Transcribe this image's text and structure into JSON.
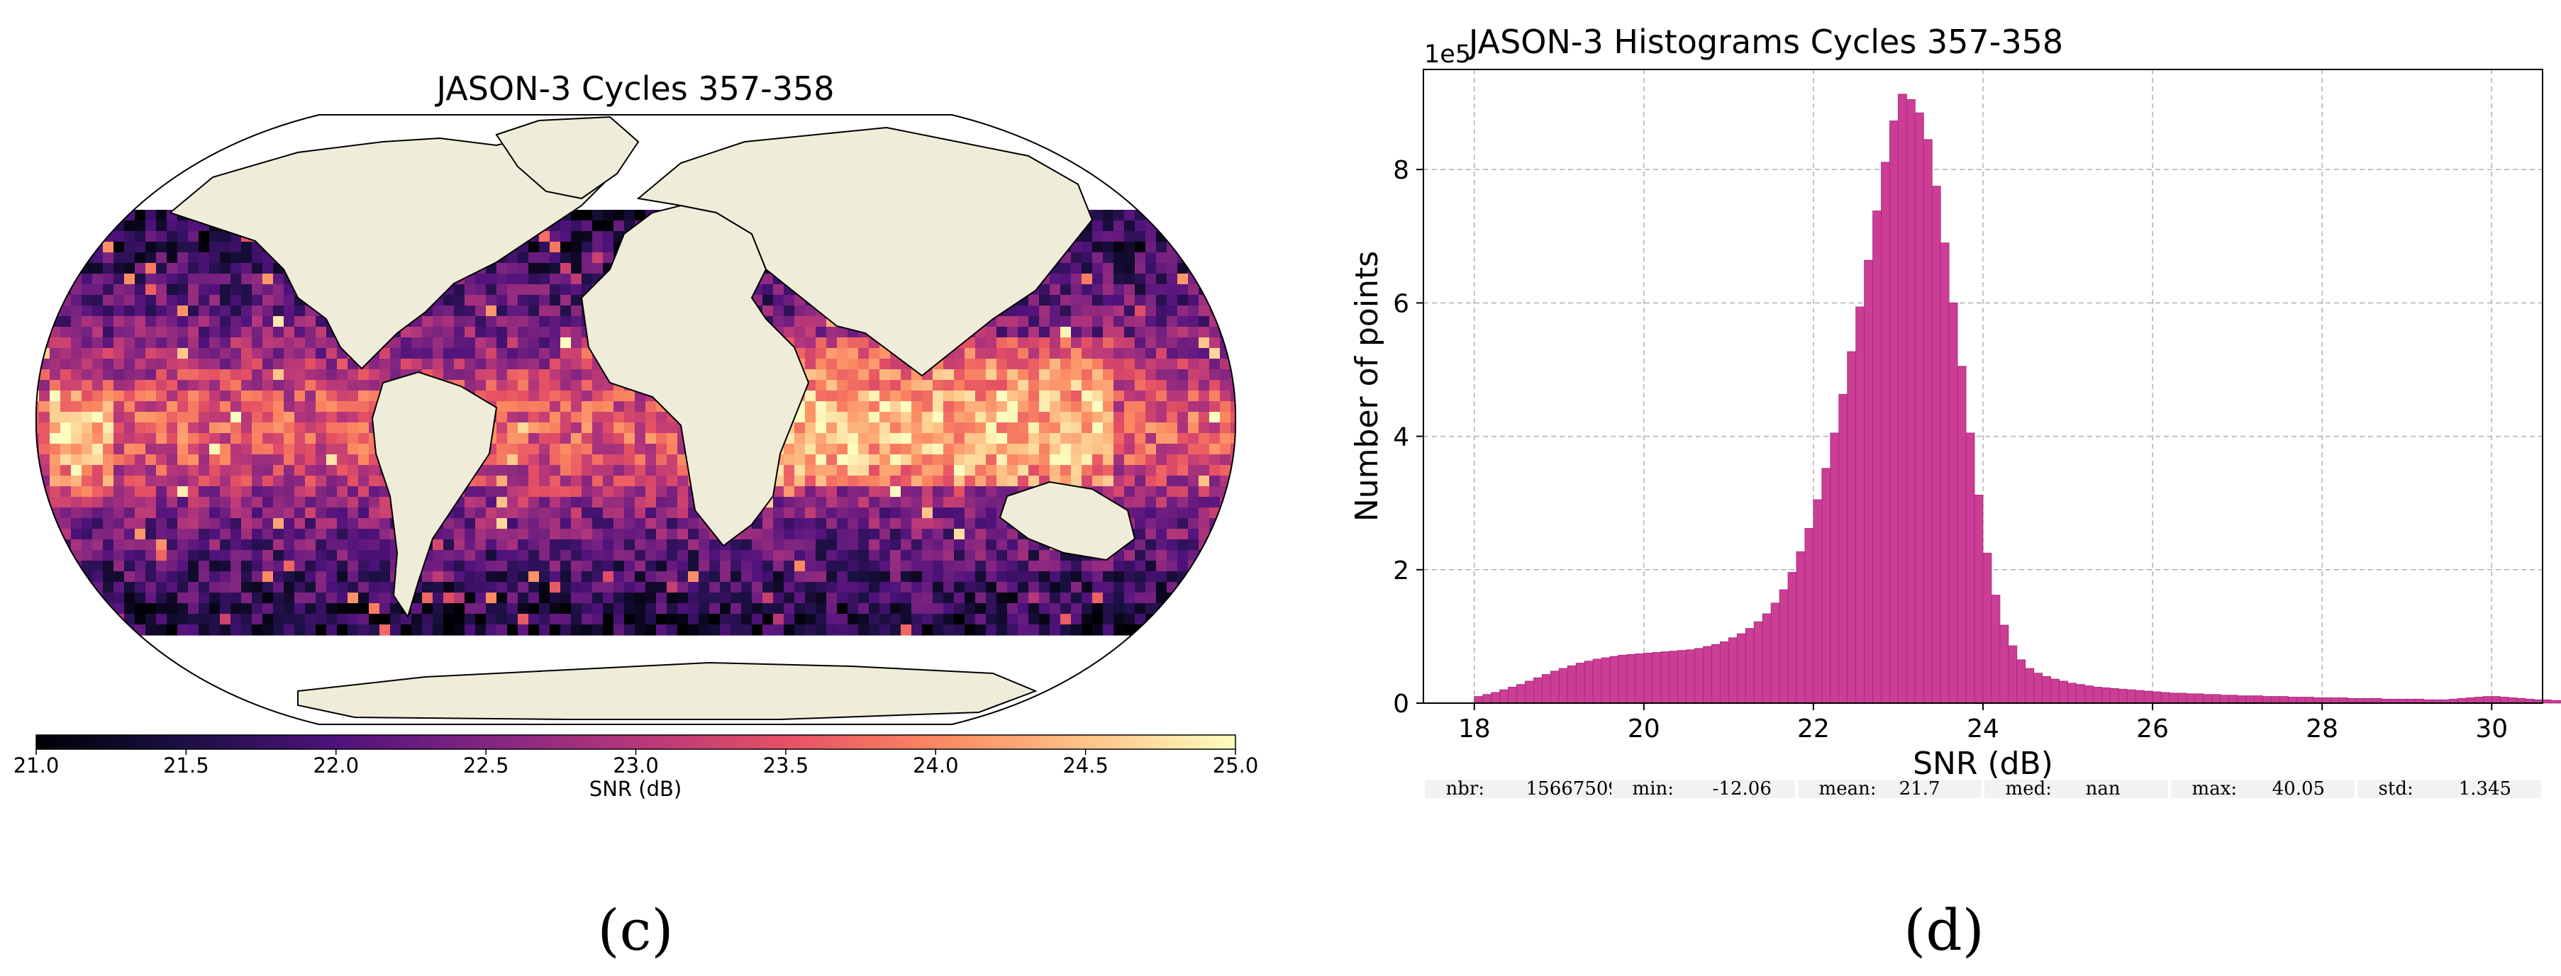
{
  "map_panel": {
    "title": "JASON-3 Cycles 357-358",
    "colorbar_label": "SNR (dB)",
    "colorbar_ticks": [
      "21.0",
      "21.5",
      "22.0",
      "22.5",
      "23.0",
      "23.5",
      "24.0",
      "24.5",
      "25.0"
    ],
    "colormap": [
      "#000004",
      "#1c1044",
      "#4f127b",
      "#812581",
      "#b5367a",
      "#e55064",
      "#fb8761",
      "#fec287",
      "#fcfdbf"
    ],
    "land_color": "#efedda",
    "caption": "(c)"
  },
  "hist_panel": {
    "caption": "(d)",
    "stats": [
      {
        "label": "nbr:",
        "value": "15667509"
      },
      {
        "label": "min:",
        "value": "-12.06"
      },
      {
        "label": "mean:",
        "value": "21.7"
      },
      {
        "label": "med:",
        "value": "nan"
      },
      {
        "label": "max:",
        "value": "40.05"
      },
      {
        "label": "std:",
        "value": "1.345"
      }
    ]
  },
  "chart_data": {
    "type": "bar",
    "title": "JASON-3 Histograms Cycles 357-358",
    "xlabel": "SNR (dB)",
    "ylabel": "Number of points",
    "y_offset_label": "1e5",
    "xlim": [
      17.4,
      30.6
    ],
    "ylim": [
      0,
      9.5
    ],
    "xticks": [
      18,
      20,
      22,
      24,
      26,
      28,
      30
    ],
    "yticks": [
      0,
      2,
      4,
      6,
      8
    ],
    "grid": true,
    "bar_color": "#cc3d96",
    "bar_edge_color": "#9e2a73",
    "bin_start": 18.0,
    "bin_width": 0.1,
    "values": [
      0.1,
      0.13,
      0.16,
      0.2,
      0.24,
      0.28,
      0.33,
      0.38,
      0.43,
      0.48,
      0.52,
      0.56,
      0.6,
      0.63,
      0.66,
      0.68,
      0.7,
      0.72,
      0.73,
      0.74,
      0.75,
      0.76,
      0.77,
      0.78,
      0.79,
      0.8,
      0.82,
      0.85,
      0.88,
      0.92,
      0.98,
      1.04,
      1.12,
      1.22,
      1.34,
      1.5,
      1.7,
      1.96,
      2.27,
      2.62,
      3.05,
      3.52,
      4.05,
      4.63,
      5.27,
      5.94,
      6.64,
      7.38,
      8.11,
      8.73,
      9.13,
      9.05,
      8.85,
      8.45,
      7.75,
      6.9,
      6.0,
      5.05,
      4.05,
      3.12,
      2.25,
      1.62,
      1.17,
      0.86,
      0.65,
      0.52,
      0.45,
      0.4,
      0.36,
      0.33,
      0.3,
      0.28,
      0.26,
      0.24,
      0.23,
      0.22,
      0.21,
      0.2,
      0.19,
      0.18,
      0.17,
      0.16,
      0.15,
      0.15,
      0.14,
      0.14,
      0.13,
      0.13,
      0.12,
      0.12,
      0.11,
      0.11,
      0.11,
      0.1,
      0.1,
      0.1,
      0.09,
      0.09,
      0.09,
      0.08,
      0.08,
      0.08,
      0.08,
      0.07,
      0.07,
      0.07,
      0.07,
      0.06,
      0.06,
      0.06,
      0.06,
      0.06,
      0.05,
      0.05,
      0.05,
      0.06,
      0.07,
      0.08,
      0.09,
      0.1,
      0.1,
      0.09,
      0.08,
      0.07,
      0.06,
      0.05,
      0.05,
      0.04,
      0.04,
      0.03
    ]
  }
}
